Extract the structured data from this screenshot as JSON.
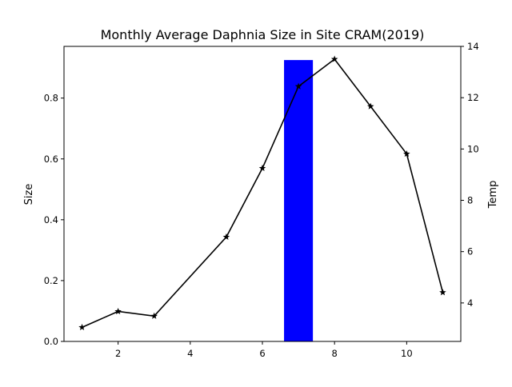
{
  "chart_data": {
    "type": "bar",
    "title": "Monthly Average Daphnia Size in Site CRAM(2019)",
    "xlabel": "",
    "ylabel": "Size",
    "y2label": "Temp",
    "xlim": [
      0.5,
      11.5
    ],
    "ylim": [
      0,
      0.97
    ],
    "y2lim": [
      2.5,
      14
    ],
    "xticks": [
      2,
      4,
      6,
      8,
      10
    ],
    "yticks": [
      0.0,
      0.2,
      0.4,
      0.6,
      0.8
    ],
    "y2ticks": [
      4,
      6,
      8,
      10,
      12,
      14
    ],
    "grid": false,
    "series": [
      {
        "axis": "left",
        "type": "bar",
        "color": "#0000ff",
        "x": [
          7
        ],
        "values": [
          0.925
        ]
      },
      {
        "axis": "right",
        "type": "line",
        "color": "#000000",
        "marker": "star",
        "x": [
          1,
          2,
          3,
          5,
          6,
          7,
          8,
          9,
          10,
          11
        ],
        "values": [
          3.05,
          3.67,
          3.49,
          6.57,
          9.25,
          12.44,
          13.5,
          11.66,
          9.81,
          4.41
        ]
      }
    ]
  }
}
